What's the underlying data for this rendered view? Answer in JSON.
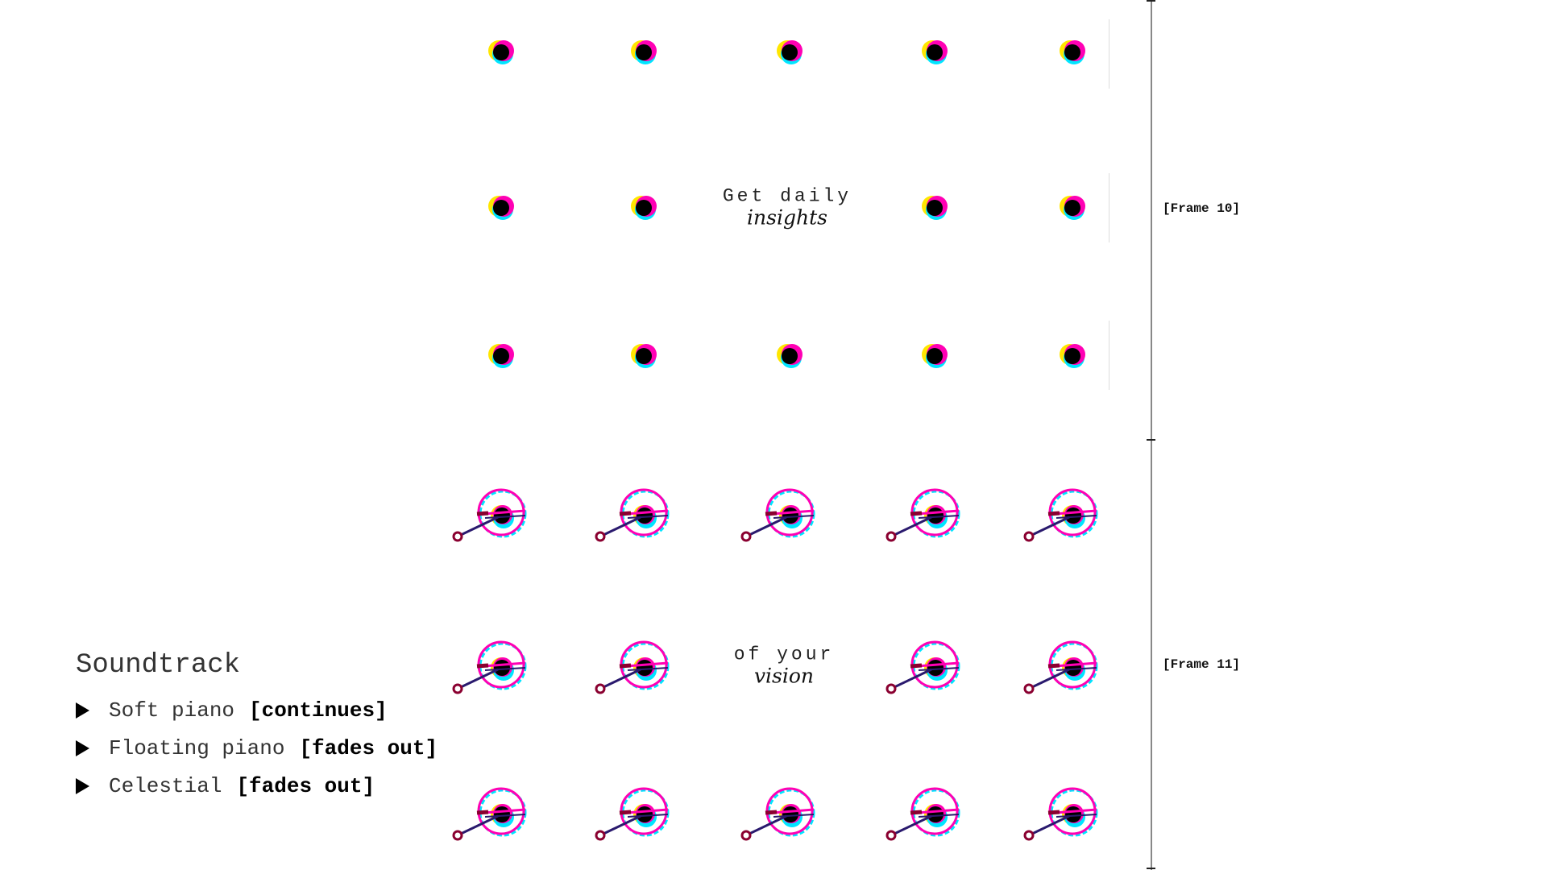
{
  "frames": [
    {
      "label": "[Frame 10]",
      "icon": "dot-icon",
      "caption": {
        "line1": "Get daily",
        "line2": "insights"
      }
    },
    {
      "label": "[Frame 11]",
      "icon": "dial-icon",
      "caption": {
        "line1": "of your",
        "line2": "vision"
      }
    }
  ],
  "soundtrack": {
    "title": "Soundtrack",
    "tracks": [
      {
        "name": "Soft piano",
        "status": "[continues]"
      },
      {
        "name": "Floating piano",
        "status": "[fades out]"
      },
      {
        "name": "Celestial",
        "status": "[fades out]"
      }
    ]
  },
  "colors": {
    "cyan": "#00e5ff",
    "magenta": "#ff00b4",
    "yellow": "#ffe600",
    "dark_red": "#8a0030",
    "navy": "#2a1a6e",
    "black": "#000000"
  }
}
